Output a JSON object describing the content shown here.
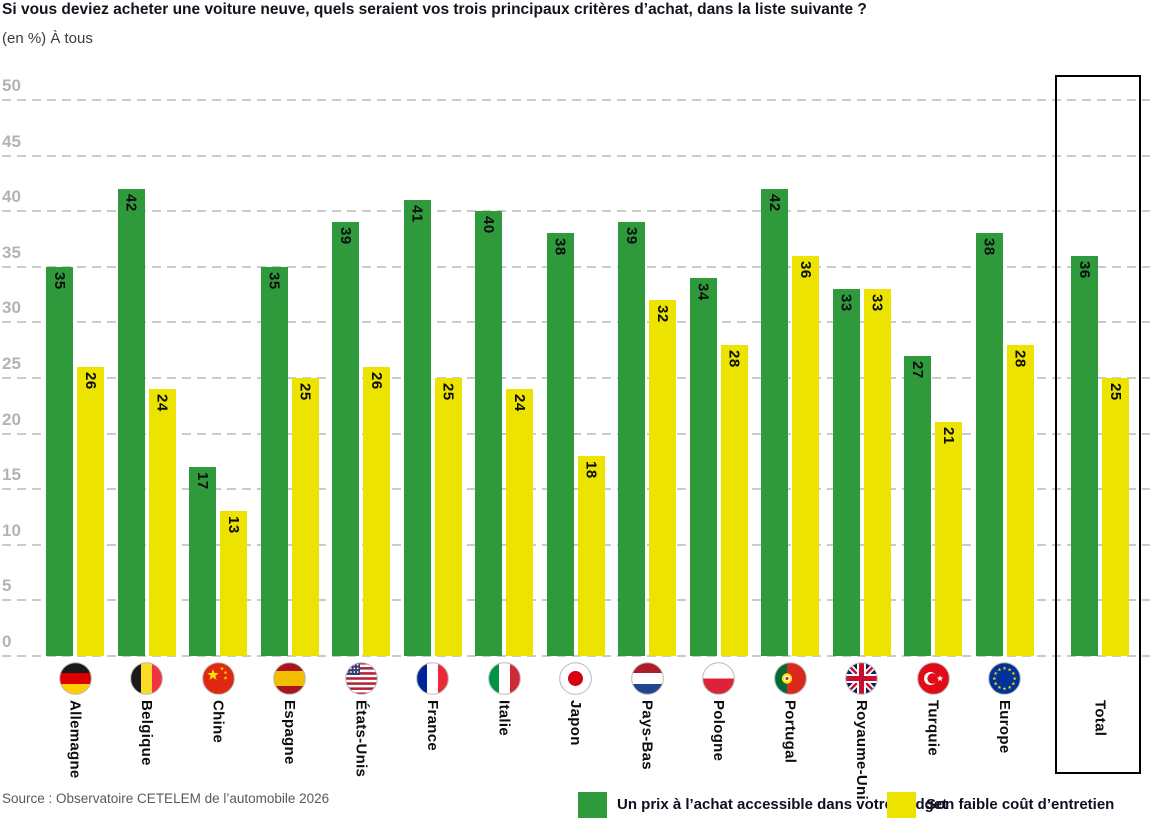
{
  "title": "Si vous deviez acheter une voiture neuve, quels seraient vos trois principaux critères d’achat, dans la liste suivante ?",
  "subtitle": "(en %) À tous",
  "source": "Source : Observatoire CETELEM de l’automobile 2026",
  "colors": {
    "green": "#2f9a3c",
    "yellow": "#ece400",
    "grid": "#cbcbcb",
    "tick_label": "#b3b3b3",
    "text": "#0d0d0d"
  },
  "chart_data": {
    "type": "bar",
    "title": "Si vous deviez acheter une voiture neuve, quels seraient vos trois principaux critères d’achat, dans la liste suivante ?",
    "subtitle": "(en %) À tous",
    "ylabel": "",
    "xlabel": "",
    "ylim": [
      0,
      50
    ],
    "yticks": [
      0,
      5,
      10,
      15,
      20,
      25,
      30,
      35,
      40,
      45,
      50
    ],
    "grid": "horizontal-dashed",
    "legend_position": "bottom-right",
    "value_labels": "inside-top, rotated 90° clockwise",
    "categories": [
      "Allemagne",
      "Belgique",
      "Chine",
      "Espagne",
      "États-Unis",
      "France",
      "Italie",
      "Japon",
      "Pays-Bas",
      "Pologne",
      "Portugal",
      "Royaume-Uni",
      "Turquie",
      "Europe",
      "Total"
    ],
    "flags": [
      "de",
      "be",
      "cn",
      "es",
      "us",
      "fr",
      "it",
      "jp",
      "nl",
      "pl",
      "pt",
      "gb",
      "tr",
      "eu",
      null
    ],
    "highlight": {
      "category": "Total",
      "style": "boxed-black-outline"
    },
    "series": [
      {
        "name": "Un prix à l’achat accessible dans votre budget",
        "color": "#2f9a3c",
        "values": [
          35,
          42,
          17,
          35,
          39,
          41,
          40,
          38,
          39,
          34,
          42,
          33,
          27,
          38,
          36
        ]
      },
      {
        "name": "Son faible coût d’entretien",
        "color": "#ece400",
        "values": [
          26,
          24,
          13,
          25,
          26,
          25,
          24,
          18,
          32,
          28,
          36,
          33,
          21,
          28,
          25
        ]
      }
    ]
  }
}
